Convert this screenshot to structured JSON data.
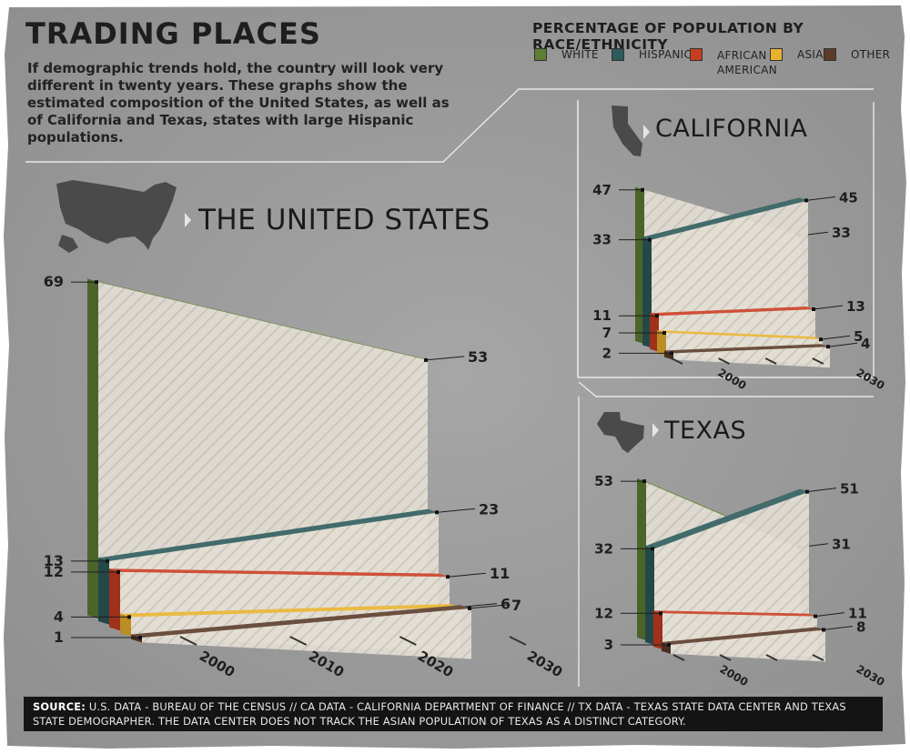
{
  "title": "TRADING PLACES",
  "intro": "If demographic trends hold, the country will look very different in twenty years. These graphs show the estimated composition of the United States, as well as of California and Texas, states with large Hispanic populations.",
  "legend": {
    "title": "PERCENTAGE OF POPULATION BY RACE/ETHNICITY",
    "items": [
      {
        "label": "WHITE",
        "color": "#5e7d35"
      },
      {
        "label": "HISPANIC",
        "color": "#2d5a5a"
      },
      {
        "label": "AFRICAN AMERICAN",
        "color": "#c83d22"
      },
      {
        "label": "ASIAN",
        "color": "#e8b22e"
      },
      {
        "label": "OTHER",
        "color": "#5b3b28"
      }
    ]
  },
  "source": {
    "label": "SOURCE:",
    "text": "U.S. DATA - BUREAU OF THE CENSUS // CA DATA - CALIFORNIA DEPARTMENT OF FINANCE // TX DATA - TEXAS STATE DATA CENTER AND TEXAS STATE DEMOGRAPHER. THE DATA CENTER DOES NOT TRACK THE ASIAN POPULATION OF TEXAS AS A DISTINCT CATEGORY."
  },
  "chart_data": [
    {
      "type": "area",
      "title": "THE UNITED STATES",
      "categories": [
        "2000",
        "2010",
        "2020",
        "2030"
      ],
      "series": [
        {
          "name": "WHITE",
          "start": 69,
          "end": 53
        },
        {
          "name": "HISPANIC",
          "start": 13,
          "end": 23
        },
        {
          "name": "AFRICAN AMERICAN",
          "start": 12,
          "end": 11
        },
        {
          "name": "ASIAN",
          "start": 4,
          "end": 6
        },
        {
          "name": "OTHER",
          "start": 1,
          "end": 7
        }
      ]
    },
    {
      "type": "area",
      "title": "CALIFORNIA",
      "categories": [
        "2000",
        "2030"
      ],
      "series": [
        {
          "name": "WHITE",
          "start": 47,
          "end": 33
        },
        {
          "name": "HISPANIC",
          "start": 33,
          "end": 45
        },
        {
          "name": "AFRICAN AMERICAN",
          "start": 11,
          "end": 13
        },
        {
          "name": "ASIAN",
          "start": 7,
          "end": 5
        },
        {
          "name": "OTHER",
          "start": 2,
          "end": 4
        }
      ]
    },
    {
      "type": "area",
      "title": "TEXAS",
      "categories": [
        "2000",
        "2030"
      ],
      "series": [
        {
          "name": "WHITE",
          "start": 53,
          "end": 31
        },
        {
          "name": "HISPANIC",
          "start": 32,
          "end": 51
        },
        {
          "name": "AFRICAN AMERICAN",
          "start": 12,
          "end": 11
        },
        {
          "name": "OTHER",
          "start": 3,
          "end": 8
        }
      ]
    }
  ]
}
